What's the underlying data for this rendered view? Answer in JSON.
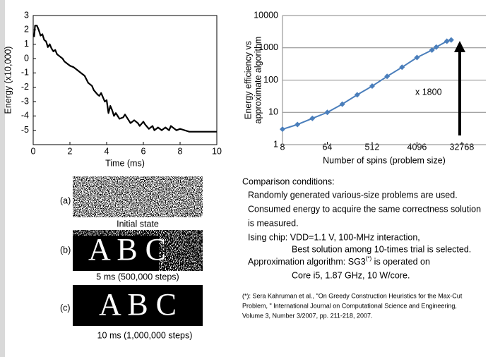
{
  "chart_data": [
    {
      "type": "line",
      "xlabel": "Time (ms)",
      "ylabel": [
        "Energy (x10,000)"
      ],
      "color": "#000000",
      "marker": "none",
      "grid": false,
      "xlim": [
        0,
        10
      ],
      "ylim": [
        -6,
        3
      ],
      "xticks": [
        0,
        2,
        4,
        6,
        8,
        10
      ],
      "yticks": [
        3,
        2,
        1,
        0,
        -1,
        -2,
        -3,
        -4,
        -5
      ],
      "series": [
        {
          "x": [
            0.05,
            0.1,
            0.2,
            0.3,
            0.4,
            0.5,
            0.6,
            0.7,
            0.8,
            0.9,
            1.0,
            1.1,
            1.2,
            1.3,
            1.4,
            1.5,
            1.6,
            1.7,
            1.8,
            1.9,
            2.0,
            2.2,
            2.4,
            2.6,
            2.8,
            3.0,
            3.2,
            3.3,
            3.5,
            3.6,
            3.7,
            3.8,
            3.9,
            4.0,
            4.1,
            4.2,
            4.3,
            4.4,
            4.5,
            4.7,
            4.9,
            5.0,
            5.2,
            5.3,
            5.5,
            5.7,
            5.8,
            6.0,
            6.1,
            6.3,
            6.5,
            6.6,
            6.8,
            7.0,
            7.2,
            7.4,
            7.5,
            7.8,
            8.0,
            8.5,
            9.0,
            10.0
          ],
          "values": [
            1.5,
            2.3,
            2.3,
            2.0,
            1.6,
            1.7,
            1.3,
            1.2,
            0.8,
            1.0,
            0.7,
            0.5,
            0.6,
            0.3,
            0.2,
            0.1,
            0.0,
            -0.2,
            -0.3,
            -0.4,
            -0.5,
            -0.6,
            -0.8,
            -1.0,
            -1.2,
            -1.7,
            -1.9,
            -2.2,
            -2.5,
            -2.6,
            -2.4,
            -2.7,
            -3.0,
            -2.9,
            -3.8,
            -3.3,
            -3.6,
            -4.0,
            -3.8,
            -4.2,
            -4.1,
            -3.9,
            -4.3,
            -4.5,
            -4.3,
            -4.5,
            -4.7,
            -4.4,
            -4.6,
            -4.9,
            -4.7,
            -5.0,
            -4.8,
            -5.0,
            -4.8,
            -5.0,
            -4.7,
            -5.0,
            -4.9,
            -5.1,
            -5.1,
            -5.1
          ]
        }
      ]
    },
    {
      "type": "line",
      "xlabel": "Number of spins (problem size)",
      "ylabel": [
        "Energy efficiency vs",
        "approximate algorithm"
      ],
      "color": "#4a7ebb",
      "marker": "diamond",
      "grid": true,
      "xscale": "log",
      "yscale": "log",
      "xlim": [
        8,
        100000
      ],
      "ylim": [
        1,
        10000
      ],
      "xticks": [
        8,
        64,
        512,
        4096,
        32768
      ],
      "yticks": [
        10000,
        1000,
        100,
        10,
        1
      ],
      "annotation": "x 1800",
      "series": [
        {
          "x": [
            8,
            16,
            32,
            64,
            128,
            256,
            512,
            1024,
            2048,
            4096,
            8192,
            10000,
            16384,
            20000
          ],
          "values": [
            3,
            4.2,
            6.5,
            10,
            18,
            35,
            65,
            130,
            250,
            500,
            850,
            1050,
            1600,
            1750
          ]
        }
      ]
    }
  ],
  "panels": [
    {
      "label": "(a)",
      "caption": "Initial state"
    },
    {
      "label": "(b)",
      "image_text": "A B C",
      "caption": "5 ms (500,000 steps)"
    },
    {
      "label": "(c)",
      "image_text": "A B C",
      "caption": "10 ms (1,000,000 steps)"
    }
  ],
  "conditions": {
    "heading": "Comparison conditions:",
    "lines": [
      "Randomly generated various-size problems are used.",
      "Consumed energy to acquire the same correctness solution",
      "is measured.",
      "Ising chip: VDD=1.1 V, 100-MHz interaction,",
      "Best solution among 10-times trial is selected."
    ],
    "algorithm": "Approximation algorithm: SG3",
    "marker": "(*)",
    "algorithm_rest": " is operated on",
    "cpu": "Core i5, 1.87 GHz, 10 W/core."
  },
  "footnote": [
    "(*): Sera Kahruman et al., \"On Greedy Construction Heuristics for the Max-Cut",
    "Problem, \" International Journal on Computational Science and Engineering,",
    "Volume 3, Number 3/2007, pp. 211-218, 2007."
  ]
}
